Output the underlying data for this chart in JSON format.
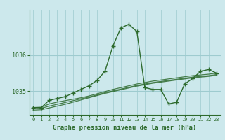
{
  "title": "Graphe pression niveau de la mer (hPa)",
  "background_color": "#cce8ec",
  "line_color": "#2d6a2d",
  "grid_color": "#9ecbcf",
  "x_ticks": [
    0,
    1,
    2,
    3,
    4,
    5,
    6,
    7,
    8,
    9,
    10,
    11,
    12,
    13,
    14,
    15,
    16,
    17,
    18,
    19,
    20,
    21,
    22,
    23
  ],
  "yticks": [
    1035,
    1036
  ],
  "ylim": [
    1034.35,
    1037.25
  ],
  "xlim": [
    -0.5,
    23.5
  ],
  "series": {
    "main": {
      "x": [
        0,
        1,
        2,
        3,
        4,
        5,
        6,
        7,
        8,
        9,
        10,
        11,
        12,
        13,
        14,
        15,
        16,
        17,
        18,
        19,
        20,
        21,
        22,
        23
      ],
      "y": [
        1034.55,
        1034.55,
        1034.75,
        1034.8,
        1034.85,
        1034.95,
        1035.05,
        1035.15,
        1035.3,
        1035.55,
        1036.25,
        1036.75,
        1036.85,
        1036.65,
        1035.1,
        1035.05,
        1035.05,
        1034.65,
        1034.7,
        1035.2,
        1035.35,
        1035.55,
        1035.6,
        1035.5
      ]
    },
    "smooth1": {
      "x": [
        0,
        1,
        2,
        3,
        4,
        5,
        6,
        7,
        8,
        9,
        10,
        11,
        12,
        13,
        14,
        15,
        16,
        17,
        18,
        19,
        20,
        21,
        22,
        23
      ],
      "y": [
        1034.55,
        1034.56,
        1034.65,
        1034.7,
        1034.74,
        1034.78,
        1034.82,
        1034.87,
        1034.93,
        1034.99,
        1035.05,
        1035.1,
        1035.15,
        1035.2,
        1035.24,
        1035.28,
        1035.31,
        1035.34,
        1035.37,
        1035.4,
        1035.43,
        1035.45,
        1035.47,
        1035.5
      ]
    },
    "smooth2": {
      "x": [
        0,
        1,
        2,
        3,
        4,
        5,
        6,
        7,
        8,
        9,
        10,
        11,
        12,
        13,
        14,
        15,
        16,
        17,
        18,
        19,
        20,
        21,
        22,
        23
      ],
      "y": [
        1034.52,
        1034.53,
        1034.59,
        1034.64,
        1034.69,
        1034.74,
        1034.79,
        1034.84,
        1034.9,
        1034.96,
        1035.01,
        1035.06,
        1035.11,
        1035.16,
        1035.2,
        1035.24,
        1035.27,
        1035.3,
        1035.33,
        1035.36,
        1035.39,
        1035.41,
        1035.43,
        1035.46
      ]
    },
    "smooth3": {
      "x": [
        0,
        1,
        2,
        3,
        4,
        5,
        6,
        7,
        8,
        9,
        10,
        11,
        12,
        13,
        14,
        15,
        16,
        17,
        18,
        19,
        20,
        21,
        22,
        23
      ],
      "y": [
        1034.48,
        1034.49,
        1034.54,
        1034.59,
        1034.64,
        1034.7,
        1034.76,
        1034.82,
        1034.88,
        1034.94,
        1034.99,
        1035.04,
        1035.09,
        1035.14,
        1035.18,
        1035.22,
        1035.25,
        1035.28,
        1035.31,
        1035.34,
        1035.37,
        1035.39,
        1035.41,
        1035.44
      ]
    }
  },
  "figsize": [
    3.2,
    2.0
  ],
  "dpi": 100
}
